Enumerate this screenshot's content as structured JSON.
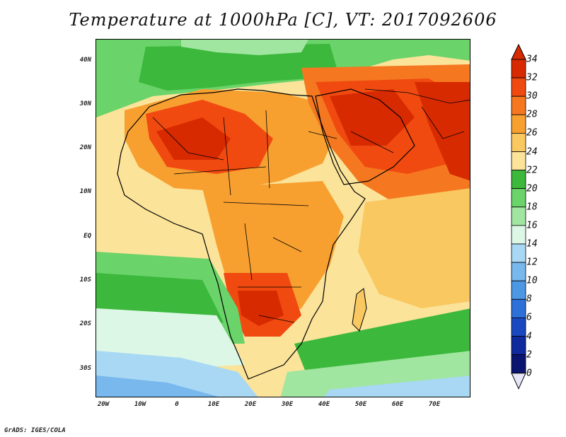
{
  "title": "Temperature at 1000hPa [C], VT: 2017092606",
  "footer": "GrADS: IGES/COLA",
  "lat_labels": [
    "40N",
    "30N",
    "20N",
    "10N",
    "EQ",
    "10S",
    "20S",
    "30S"
  ],
  "lon_labels": [
    "20W",
    "10W",
    "0",
    "10E",
    "20E",
    "30E",
    "40E",
    "50E",
    "60E",
    "70E"
  ],
  "colorbar": {
    "unit": "C",
    "labels": [
      "34",
      "32",
      "30",
      "28",
      "26",
      "24",
      "22",
      "20",
      "18",
      "16",
      "14",
      "12",
      "10",
      "8",
      "6",
      "4",
      "2",
      "0"
    ],
    "colors": [
      "#a01a00",
      "#d82a00",
      "#f04a10",
      "#f57820",
      "#f7a030",
      "#f9c860",
      "#fbe39a",
      "#3cb83c",
      "#6ad36a",
      "#a0e6a0",
      "#dcf7e6",
      "#a8d8f4",
      "#78b8ec",
      "#4c98e4",
      "#2c70d8",
      "#1a48c0",
      "#0e2a9c",
      "#0a1570"
    ],
    "top_arrow_color": "#d82a00",
    "bottom_arrow_color": "#e6e6f8"
  }
}
